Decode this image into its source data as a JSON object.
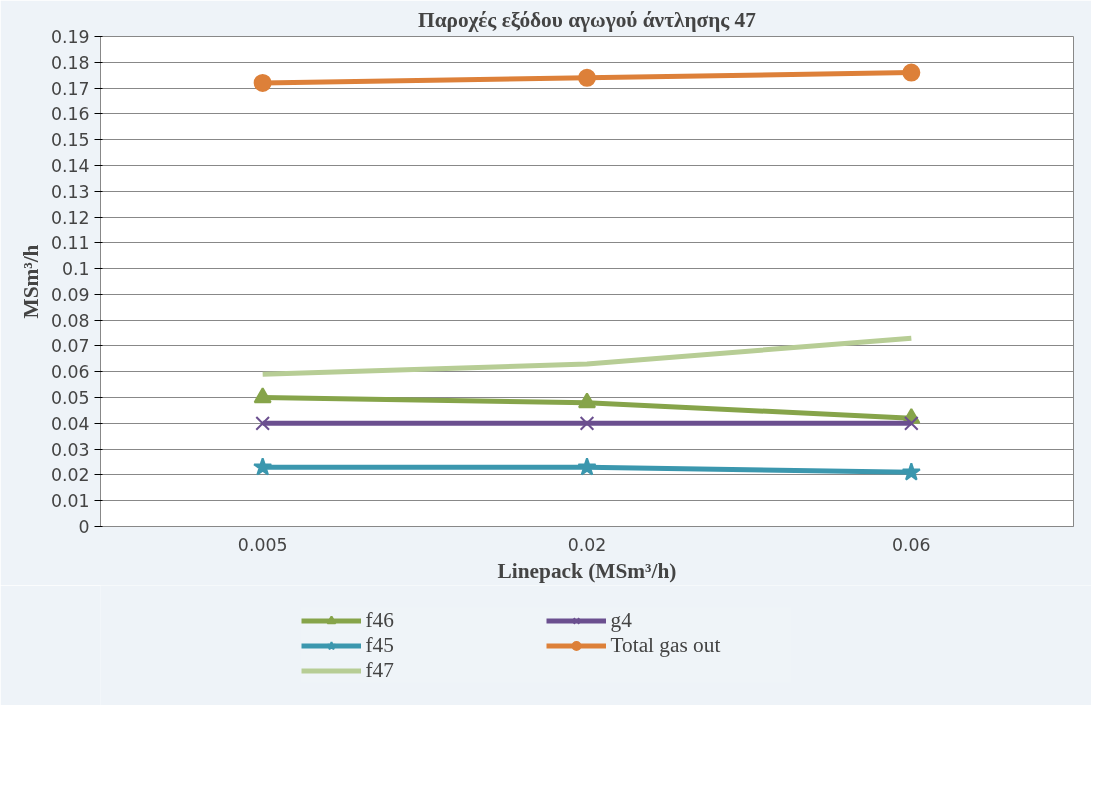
{
  "chart_data": {
    "type": "line",
    "title": "Παροχές εξόδου αγωγού άντλησης 47",
    "xlabel": "Linepack (MSm³/h)",
    "ylabel": "MSm³/h",
    "categories": [
      "0.005",
      "0.02",
      "0.06"
    ],
    "series": [
      {
        "name": "f46",
        "color": "#86a44a",
        "marker": "triangle",
        "values": [
          0.05,
          0.048,
          0.042
        ]
      },
      {
        "name": "g4",
        "color": "#6b4f8f",
        "marker": "cross",
        "values": [
          0.04,
          0.04,
          0.04
        ]
      },
      {
        "name": "f45",
        "color": "#3b97ae",
        "marker": "star",
        "values": [
          0.023,
          0.023,
          0.021
        ]
      },
      {
        "name": "Total gas out",
        "color": "#dd8039",
        "marker": "circle",
        "values": [
          0.172,
          0.174,
          0.176
        ]
      },
      {
        "name": "f47",
        "color": "#b7cd95",
        "marker": "none",
        "values": [
          0.059,
          0.063,
          0.073
        ]
      }
    ],
    "ylim": [
      0,
      0.19
    ],
    "yticks": [
      0,
      0.01,
      0.02,
      0.03,
      0.04,
      0.05,
      0.06,
      0.07,
      0.08,
      0.09,
      0.1,
      0.11,
      0.12,
      0.13,
      0.14,
      0.15,
      0.16,
      0.17,
      0.18,
      0.19
    ],
    "grid": "y",
    "legend": "bottom"
  }
}
